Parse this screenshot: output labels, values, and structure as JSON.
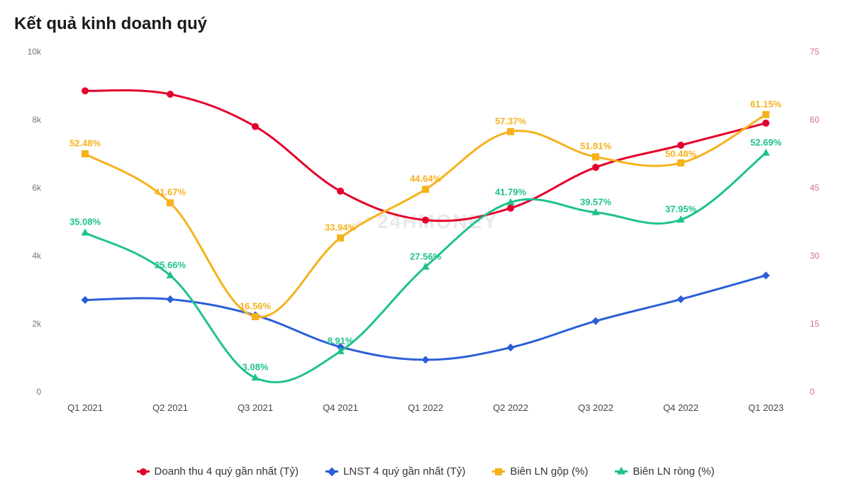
{
  "title": "Kết quả kinh doanh quý",
  "watermark": "24HMONEY",
  "chart": {
    "type": "line",
    "background": "#ffffff",
    "categories": [
      "Q1 2021",
      "Q2 2021",
      "Q3 2021",
      "Q4 2021",
      "Q1 2022",
      "Q2 2022",
      "Q3 2022",
      "Q4 2022",
      "Q1 2023"
    ],
    "left_axis": {
      "min": 0,
      "max": 10000,
      "ticks": [
        0,
        2000,
        4000,
        6000,
        8000,
        10000
      ],
      "tick_labels": [
        "0",
        "2k",
        "4k",
        "6k",
        "8k",
        "10k"
      ],
      "color": "#777777",
      "fontsize": 12
    },
    "right_axis": {
      "min": 0,
      "max": 75,
      "ticks": [
        0,
        15,
        30,
        45,
        60,
        75
      ],
      "tick_labels": [
        "0",
        "15",
        "30",
        "45",
        "60",
        "75"
      ],
      "color": "#d6699a",
      "fontsize": 12
    },
    "x_axis": {
      "fontsize": 13,
      "color": "#444444"
    },
    "line_width": 3,
    "marker_size": 10,
    "label_fontsize": 13,
    "series": [
      {
        "key": "revenue",
        "name": "Doanh thu 4 quý gần nhất (Tỷ)",
        "axis": "left",
        "color": "#e3002b",
        "marker": "circle",
        "values": [
          8850,
          8750,
          7800,
          5900,
          5050,
          5400,
          6600,
          7250,
          7900
        ],
        "show_labels": false
      },
      {
        "key": "lnst",
        "name": "LNST 4 quý gần nhất (Tỷ)",
        "axis": "left",
        "color": "#2b5fd9",
        "marker": "diamond",
        "values": [
          2700,
          2720,
          2250,
          1320,
          940,
          1300,
          2080,
          2720,
          3420
        ],
        "show_labels": false
      },
      {
        "key": "gross_margin",
        "name": "Biên LN gộp (%)",
        "axis": "right",
        "color": "#f5b21c",
        "marker": "square",
        "values": [
          52.48,
          41.67,
          16.56,
          33.94,
          44.64,
          57.37,
          51.81,
          50.48,
          61.15
        ],
        "show_labels": true,
        "label_suffix": "%",
        "label_offsets_y": [
          0,
          0,
          0,
          0,
          0,
          0,
          0,
          2,
          0
        ]
      },
      {
        "key": "net_margin",
        "name": "Biên LN ròng (%)",
        "axis": "right",
        "color": "#1fc28a",
        "marker": "triangle",
        "values": [
          35.08,
          25.66,
          3.08,
          8.91,
          27.56,
          41.79,
          39.57,
          37.95,
          52.69
        ],
        "show_labels": true,
        "label_suffix": "%",
        "label_offsets_y": [
          0,
          0,
          0,
          0,
          0,
          0,
          0,
          0,
          0
        ]
      }
    ],
    "legend_gap": 38
  }
}
